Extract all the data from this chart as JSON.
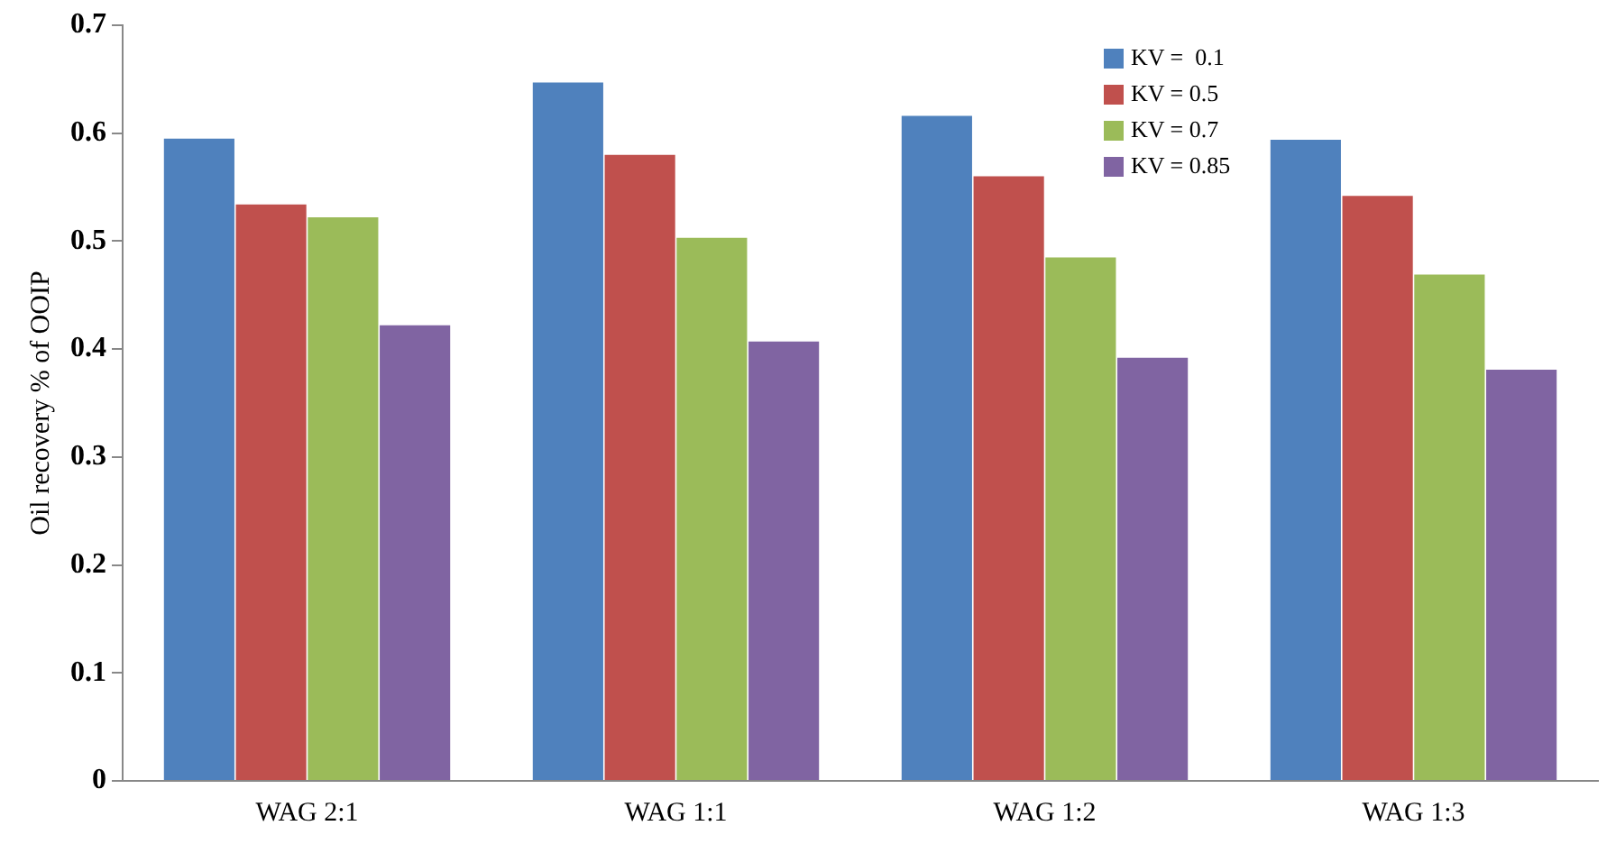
{
  "chart_data": {
    "type": "bar",
    "ylabel": "Oil recovery % of OOIP",
    "categories": [
      "WAG 2:1",
      "WAG 1:1",
      "WAG 1:2",
      "WAG 1:3"
    ],
    "series": [
      {
        "name": "KV =  0.1",
        "color": "#4f81bd",
        "values": [
          0.595,
          0.647,
          0.616,
          0.594
        ]
      },
      {
        "name": "KV = 0.5",
        "color": "#c0504d",
        "values": [
          0.534,
          0.58,
          0.56,
          0.542
        ]
      },
      {
        "name": "KV = 0.7",
        "color": "#9bbb59",
        "values": [
          0.522,
          0.503,
          0.485,
          0.469
        ]
      },
      {
        "name": "KV = 0.85",
        "color": "#8064a2",
        "values": [
          0.422,
          0.407,
          0.392,
          0.381
        ]
      }
    ],
    "ylim": [
      0,
      0.7
    ],
    "yticks": [
      0,
      0.1,
      0.2,
      0.3,
      0.4,
      0.5,
      0.6,
      0.7
    ],
    "grid": false,
    "legend": "top right"
  }
}
